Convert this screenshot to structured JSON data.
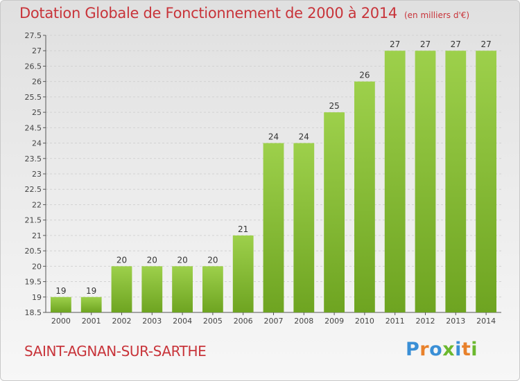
{
  "chart_data": {
    "type": "bar",
    "title": "Dotation Globale de Fonctionnement de 2000 à 2014",
    "unit": "(en milliers d'€)",
    "categories": [
      "2000",
      "2001",
      "2002",
      "2003",
      "2004",
      "2005",
      "2006",
      "2007",
      "2008",
      "2009",
      "2010",
      "2011",
      "2012",
      "2013",
      "2014"
    ],
    "values": [
      19,
      19,
      20,
      20,
      20,
      20,
      21,
      24,
      24,
      25,
      26,
      27,
      27,
      27,
      27
    ],
    "ylim": [
      18.5,
      27.5
    ],
    "yticks": [
      "18.5",
      "19",
      "19.5",
      "20",
      "20.5",
      "21",
      "21.5",
      "22",
      "22.5",
      "23",
      "23.5",
      "24",
      "24.5",
      "25",
      "25.5",
      "26",
      "26.5",
      "27",
      "27.5"
    ],
    "grid": true,
    "bar_color_top": "#9dd04b",
    "bar_color_bottom": "#6ea421"
  },
  "footer": {
    "commune": "SAINT-AGNAN-SUR-SARTHE",
    "logo_text": "Proxiti",
    "logo_colors": [
      "#3a8fd6",
      "#e8812b",
      "#3a8fd6",
      "#6bb82e",
      "#3a8fd6",
      "#e8812b",
      "#6bb82e"
    ]
  }
}
